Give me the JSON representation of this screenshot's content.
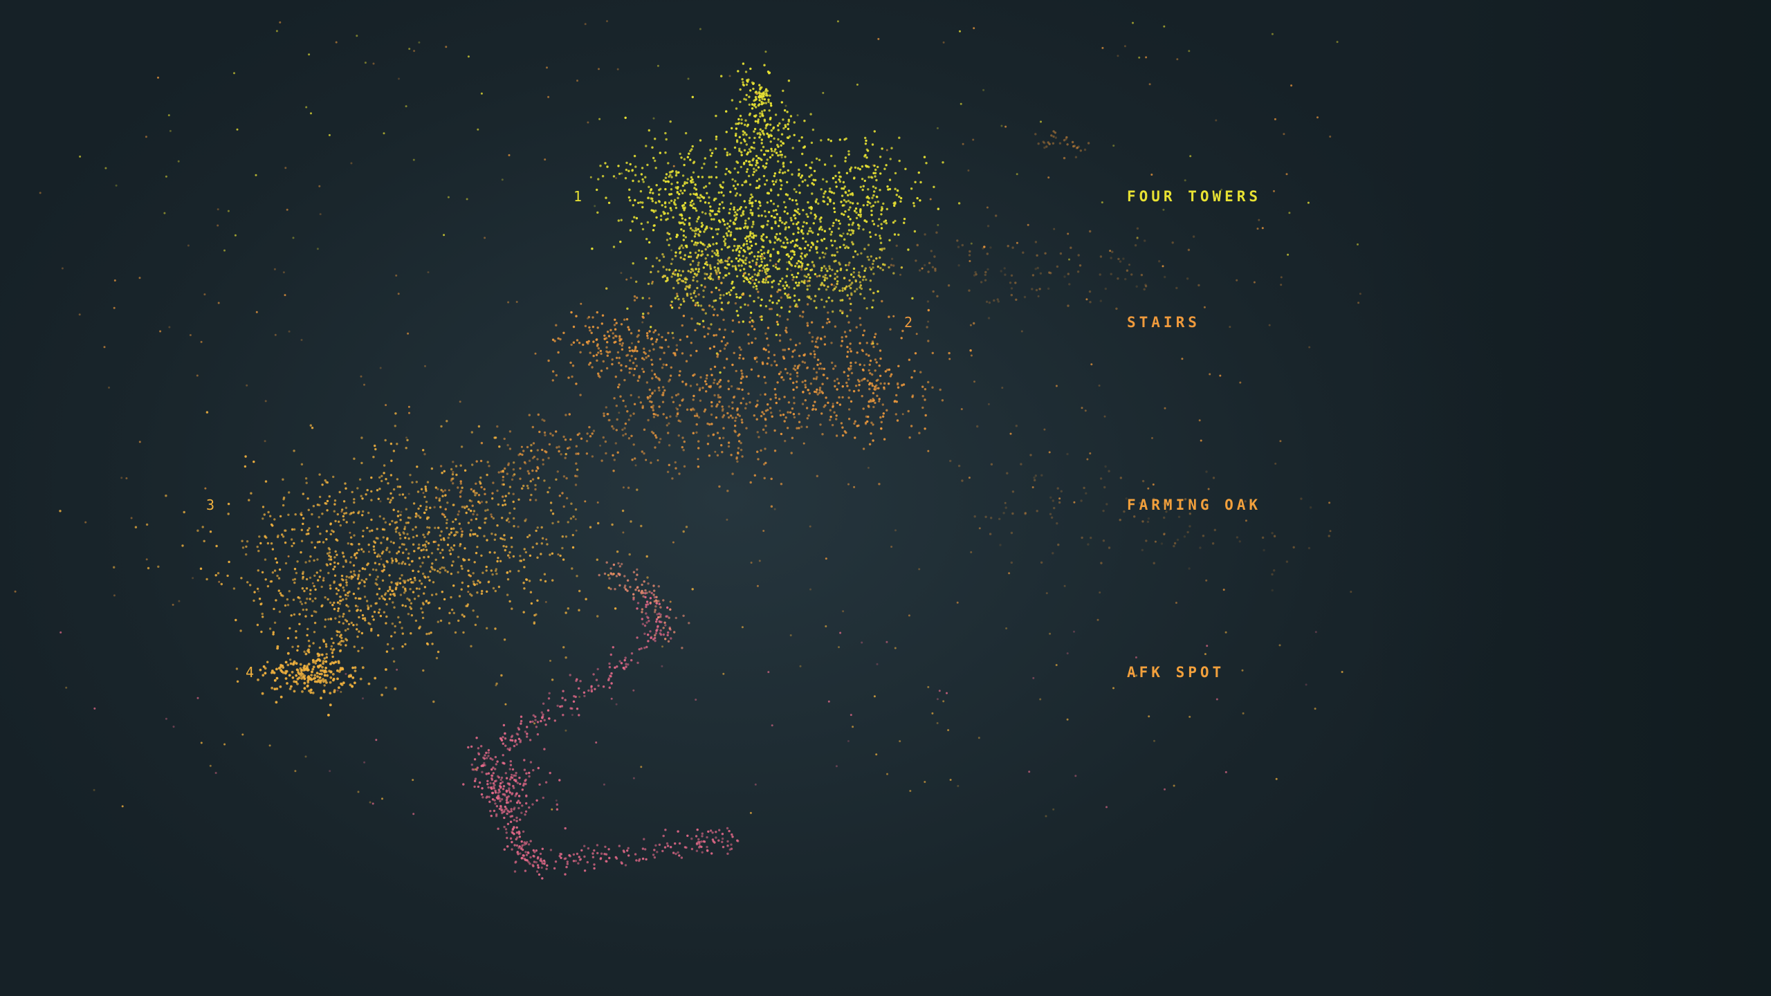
{
  "palette": {
    "background": "#1f2d34",
    "yellow": "#e8e233",
    "orange": "#ef9a3c",
    "amber": "#f2b23e",
    "pink": "#e66a8a"
  },
  "markers": [
    {
      "label": "1",
      "color": "#e8e233"
    },
    {
      "label": "2",
      "color": "#ef9a3c"
    },
    {
      "label": "3",
      "color": "#f2b23e"
    },
    {
      "label": "4",
      "color": "#f2b23e"
    }
  ],
  "regions": [
    {
      "label": "FOUR TOWERS",
      "color": "#e8e233"
    },
    {
      "label": "STAIRS",
      "color": "#ef9a3c"
    },
    {
      "label": "FARMING OAK",
      "color": "#f2a03c"
    },
    {
      "label": "AFK SPOT",
      "color": "#f2a03c"
    }
  ]
}
